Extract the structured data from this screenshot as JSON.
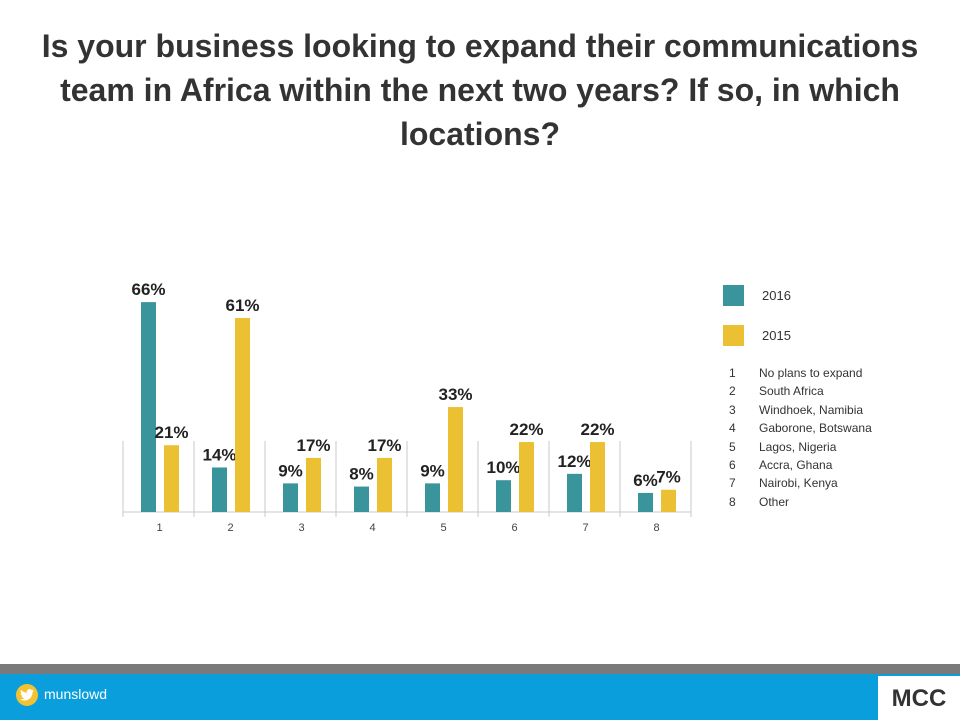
{
  "slide": {
    "title": "Is your business looking to expand their communications team in Africa within the next two years? If so, in which locations?"
  },
  "chart_data": {
    "type": "bar",
    "categories": [
      "1",
      "2",
      "3",
      "4",
      "5",
      "6",
      "7",
      "8"
    ],
    "series": [
      {
        "name": "2016",
        "values": [
          66,
          14,
          9,
          8,
          9,
          10,
          12,
          6
        ],
        "labels": [
          "66%",
          "14%",
          "9%",
          "8%",
          "9%",
          "10%",
          "12%",
          "6%"
        ],
        "color": "#3a949b"
      },
      {
        "name": "2015",
        "values": [
          21,
          61,
          17,
          17,
          33,
          22,
          22,
          7
        ],
        "labels": [
          "21%",
          "61%",
          "17%",
          "17%",
          "33%",
          "22%",
          "22%",
          "7%"
        ],
        "color": "#ebc133"
      }
    ],
    "ylim": [
      0,
      70
    ],
    "grid": false,
    "legend_position": "right",
    "key": [
      {
        "num": "1",
        "label": "No plans to expand"
      },
      {
        "num": "2",
        "label": "South Africa"
      },
      {
        "num": "3",
        "label": "Windhoek, Namibia"
      },
      {
        "num": "4",
        "label": "Gaborone, Botswana"
      },
      {
        "num": "5",
        "label": "Lagos, Nigeria"
      },
      {
        "num": "6",
        "label": "Accra, Ghana"
      },
      {
        "num": "7",
        "label": "Nairobi, Kenya"
      },
      {
        "num": "8",
        "label": "Other"
      }
    ]
  },
  "footer": {
    "handle": "munslowd",
    "logo_text": "MCC",
    "icon": "twitter-bird-icon"
  },
  "colors": {
    "footer_bar": "#0a9fdc",
    "footer_stripe": "#7a7a7a",
    "twitter_icon_bg": "#f2c230"
  }
}
